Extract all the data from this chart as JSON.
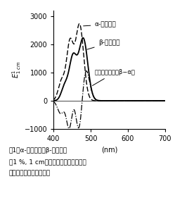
{
  "title": "",
  "xlabel": "(nm)",
  "xlim": [
    400,
    700
  ],
  "ylim": [
    -1000,
    3200
  ],
  "yticks": [
    -1000,
    0,
    1000,
    2000,
    3000
  ],
  "xticks": [
    400,
    500,
    600,
    700
  ],
  "bg_color": "#ffffff",
  "alpha_label": "α-カロテン",
  "beta_label": "β-カロテン",
  "diff_label": "差スペクトル（β−α）",
  "caption_line1": "図1　α-カロテンとβ-カロテン",
  "caption_line2": "（1 %, 1 cm）の可視吸収スペクトル",
  "caption_line3": "およびその差スペクトル"
}
